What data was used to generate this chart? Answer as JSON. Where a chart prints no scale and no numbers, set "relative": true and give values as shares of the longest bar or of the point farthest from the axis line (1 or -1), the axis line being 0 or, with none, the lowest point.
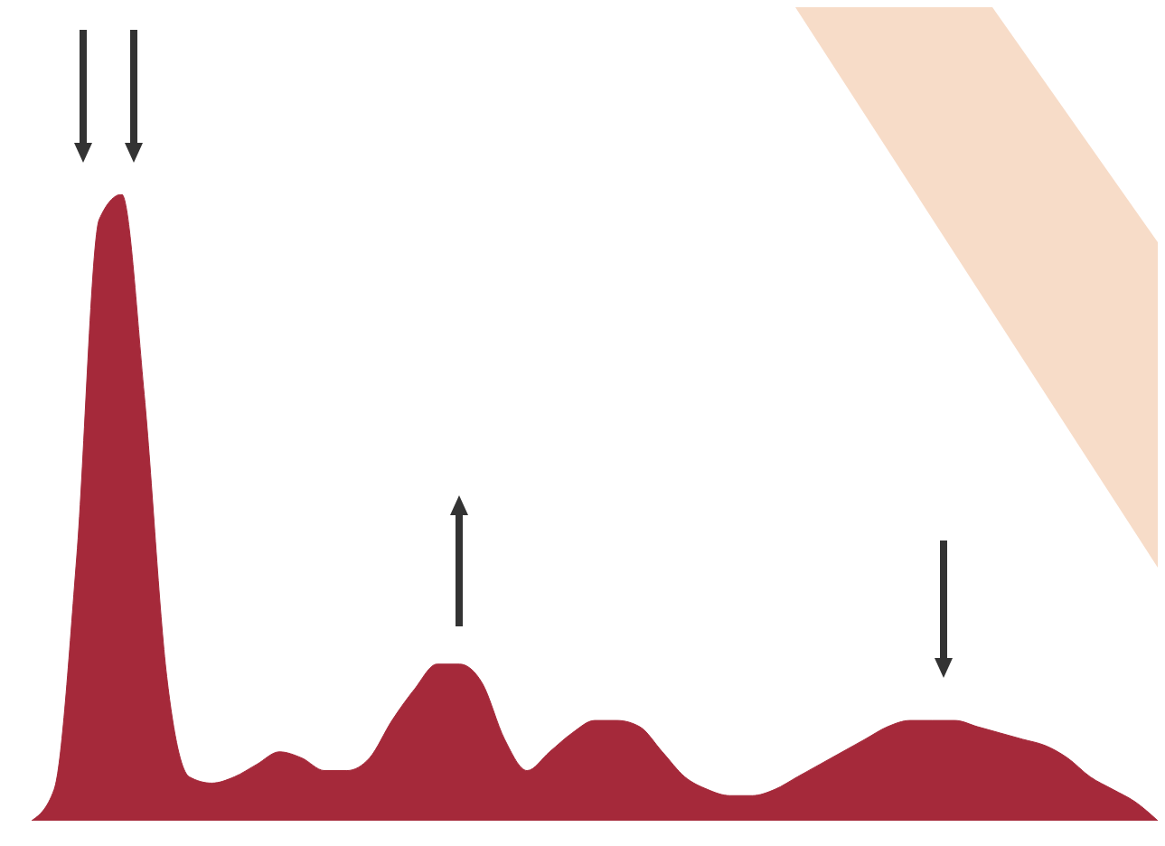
{
  "chart_data": {
    "type": "area",
    "relative": true,
    "categories": [
      null,
      null,
      null,
      null,
      null,
      null,
      null,
      null,
      null,
      null,
      null,
      null,
      null,
      null,
      null,
      null,
      null,
      null,
      null,
      null,
      null,
      null,
      null,
      null,
      null,
      null,
      null,
      null,
      null,
      null,
      null,
      null,
      null,
      null,
      null,
      null,
      null,
      null,
      null,
      null,
      null,
      null,
      null,
      null,
      null,
      null,
      null,
      null,
      null,
      null,
      null
    ],
    "series": [
      {
        "color": "#a5293a",
        "values": [
          0.0,
          0.05,
          0.42,
          0.96,
          1.0,
          0.68,
          0.23,
          0.07,
          0.06,
          0.07,
          0.09,
          0.11,
          0.1,
          0.08,
          0.08,
          0.1,
          0.16,
          0.21,
          0.25,
          0.25,
          0.22,
          0.13,
          0.08,
          0.11,
          0.14,
          0.16,
          0.16,
          0.15,
          0.11,
          0.07,
          0.05,
          0.04,
          0.04,
          0.05,
          0.07,
          0.09,
          0.11,
          0.13,
          0.15,
          0.16,
          0.16,
          0.16,
          0.15,
          0.14,
          0.13,
          0.12,
          0.1,
          0.07,
          0.05,
          0.03,
          0.0
        ]
      }
    ],
    "grid": false,
    "legend": false
  }
}
